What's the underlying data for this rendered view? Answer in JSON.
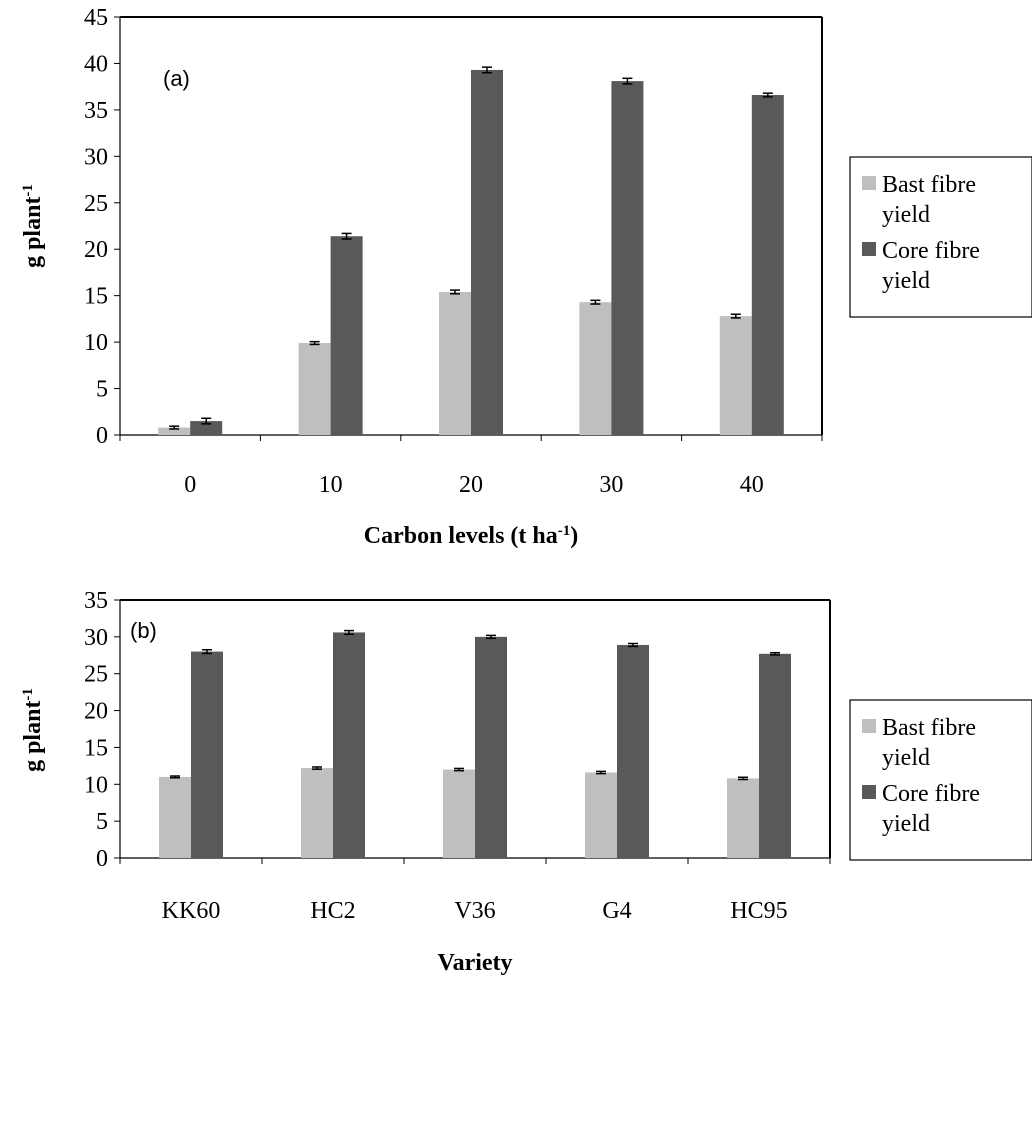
{
  "chart_data": [
    {
      "type": "bar",
      "panel_label": "(a)",
      "categories": [
        "0",
        "10",
        "20",
        "30",
        "40"
      ],
      "series": [
        {
          "name": "Bast fibre yield",
          "values": [
            0.8,
            9.9,
            15.4,
            14.3,
            12.8
          ],
          "errors": [
            0.15,
            0.15,
            0.2,
            0.2,
            0.2
          ],
          "color": "#bfbfbf"
        },
        {
          "name": "Core fibre yield",
          "values": [
            1.5,
            21.4,
            39.3,
            38.1,
            36.6
          ],
          "errors": [
            0.3,
            0.3,
            0.3,
            0.3,
            0.2
          ],
          "color": "#595959"
        }
      ],
      "xlabel": {
        "text": "Carbon levels (t ha",
        "sup": "-1",
        "after": ")"
      },
      "ylabel": {
        "text": "g plant",
        "sup": "-1"
      },
      "ylim": [
        0,
        45
      ],
      "yticks": [
        "0",
        "5",
        "10",
        "15",
        "20",
        "25",
        "30",
        "35",
        "40",
        "45"
      ],
      "grid": false,
      "legend": {
        "placement": "right",
        "entries": [
          [
            "Bast fibre",
            "yield"
          ],
          [
            "Core fibre",
            "yield"
          ]
        ]
      }
    },
    {
      "type": "bar",
      "panel_label": "(b)",
      "categories": [
        "KK60",
        "HC2",
        "V36",
        "G4",
        "HC95"
      ],
      "series": [
        {
          "name": "Bast fibre yield",
          "values": [
            11.0,
            12.2,
            12.0,
            11.6,
            10.8
          ],
          "errors": [
            0.12,
            0.15,
            0.15,
            0.15,
            0.15
          ],
          "color": "#bfbfbf"
        },
        {
          "name": "Core fibre yield",
          "values": [
            28.0,
            30.6,
            30.0,
            28.9,
            27.7
          ],
          "errors": [
            0.25,
            0.25,
            0.2,
            0.2,
            0.15
          ],
          "color": "#595959"
        }
      ],
      "xlabel": {
        "text": "Variety",
        "sup": "",
        "after": ""
      },
      "ylabel": {
        "text": "g plant",
        "sup": "-1"
      },
      "ylim": [
        0,
        35
      ],
      "yticks": [
        "0",
        "5",
        "10",
        "15",
        "20",
        "25",
        "30",
        "35"
      ],
      "grid": false,
      "legend": {
        "placement": "right",
        "entries": [
          [
            "Bast fibre",
            "yield"
          ],
          [
            "Core fibre",
            "yield"
          ]
        ]
      }
    }
  ]
}
